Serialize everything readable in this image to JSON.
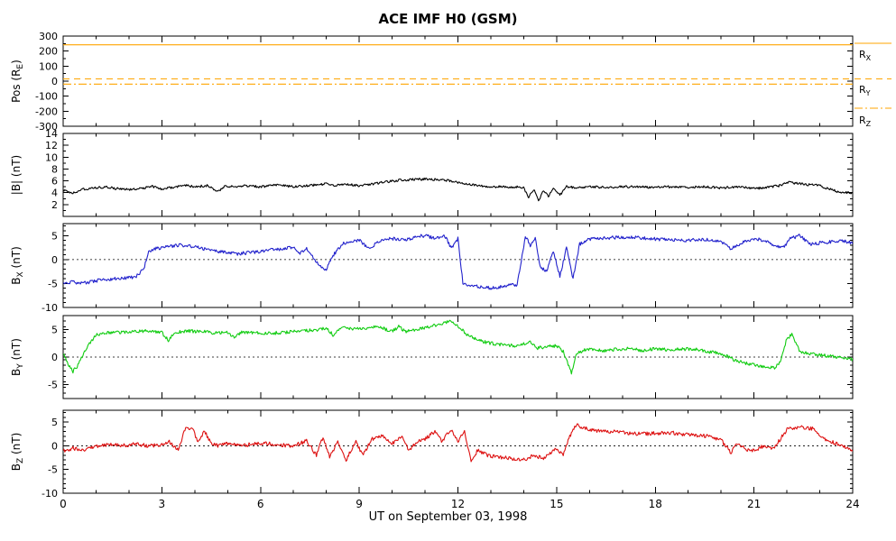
{
  "chart_data": {
    "type": "line",
    "title": "ACE IMF H0 (GSM)",
    "xlabel": "UT on September 03, 1998",
    "x_range": [
      0,
      24
    ],
    "x_major_ticks": [
      0,
      3,
      6,
      9,
      12,
      15,
      18,
      21,
      24
    ],
    "x_minor_step": 1,
    "panels": [
      {
        "id": "position",
        "ylabel_parts": [
          {
            "t": "Pos (R"
          },
          {
            "t": "E",
            "sub": true
          },
          {
            "t": ")"
          }
        ],
        "ylim": [
          -300,
          300
        ],
        "yticks": [
          300,
          200,
          100,
          0,
          -100,
          -200,
          -300
        ],
        "y_minor_step": 50,
        "zero_line": false,
        "series": [
          {
            "name": "R_X",
            "color": "#ffa500",
            "dash": "solid",
            "const": 242
          },
          {
            "name": "R_Y",
            "color": "#ffa500",
            "dash": "dash",
            "const": 15
          },
          {
            "name": "R_Z",
            "color": "#ffa500",
            "dash": "dashdot",
            "const": -20
          }
        ],
        "legend": [
          {
            "label_parts": [
              {
                "t": "R"
              },
              {
                "t": "X",
                "sub": true
              }
            ],
            "dash": "solid",
            "color": "#ffa500"
          },
          {
            "label_parts": [
              {
                "t": "R"
              },
              {
                "t": "Y",
                "sub": true
              }
            ],
            "dash": "dash",
            "color": "#ffa500"
          },
          {
            "label_parts": [
              {
                "t": "R"
              },
              {
                "t": "Z",
                "sub": true
              }
            ],
            "dash": "dashdot",
            "color": "#ffa500"
          }
        ]
      },
      {
        "id": "bmag",
        "ylabel_parts": [
          {
            "t": "|B| (nT)"
          }
        ],
        "ylim": [
          0,
          14
        ],
        "yticks": [
          2,
          4,
          6,
          8,
          10,
          12,
          14
        ],
        "y_minor_step": 1,
        "zero_line": false,
        "series": [
          {
            "name": "|B|",
            "color": "#000000",
            "dash": "solid",
            "noise": 0.2,
            "x": [
              0,
              0.3,
              0.6,
              1,
              1.3,
              1.6,
              2,
              2.4,
              2.7,
              3,
              3.4,
              3.7,
              4,
              4.4,
              4.7,
              4.9,
              5.2,
              5.5,
              6,
              6.5,
              7,
              7.5,
              8,
              8.3,
              8.6,
              9,
              9.4,
              9.8,
              10.2,
              10.6,
              11,
              11.4,
              11.8,
              12.1,
              12.4,
              12.8,
              13.2,
              13.6,
              14,
              14.15,
              14.3,
              14.45,
              14.6,
              14.75,
              14.9,
              15.1,
              15.3,
              15.6,
              16,
              16.5,
              17,
              17.5,
              18,
              18.5,
              19,
              19.5,
              20,
              20.5,
              21,
              21.4,
              21.8,
              22,
              22.3,
              22.6,
              23,
              23.3,
              23.6,
              24
            ],
            "y": [
              4.4,
              4.0,
              4.6,
              4.8,
              5.0,
              4.7,
              4.5,
              4.7,
              5.1,
              4.6,
              5.0,
              5.3,
              5.0,
              5.2,
              4.2,
              5.1,
              5.0,
              5.2,
              5.0,
              5.3,
              5.0,
              5.2,
              5.5,
              5.2,
              5.4,
              5.2,
              5.5,
              5.8,
              6.1,
              6.2,
              6.3,
              6.2,
              6.0,
              5.6,
              5.3,
              5.1,
              5.0,
              5.0,
              4.9,
              3.2,
              4.6,
              2.6,
              4.4,
              3.4,
              4.8,
              3.6,
              5.0,
              4.8,
              5.0,
              4.9,
              5.0,
              5.0,
              4.9,
              5.0,
              4.9,
              5.0,
              4.8,
              5.0,
              4.7,
              4.9,
              5.2,
              5.8,
              5.6,
              5.4,
              5.2,
              4.6,
              4.1,
              4.0
            ]
          }
        ]
      },
      {
        "id": "bx",
        "ylabel_parts": [
          {
            "t": "B"
          },
          {
            "t": "X",
            "sub": true
          },
          {
            "t": " (nT)"
          }
        ],
        "ylim": [
          -10,
          7.5
        ],
        "yticks": [
          5,
          0,
          -5,
          -10
        ],
        "y_minor_step": 1,
        "zero_line": true,
        "series": [
          {
            "name": "B_X",
            "color": "#2222cc",
            "dash": "solid",
            "noise": 0.35,
            "x": [
              0,
              0.3,
              0.5,
              0.8,
              1,
              1.3,
              1.6,
              2,
              2.2,
              2.45,
              2.6,
              2.8,
              3,
              3.3,
              3.6,
              4,
              4.3,
              4.6,
              5,
              5.3,
              5.6,
              6,
              6.3,
              6.6,
              7,
              7.2,
              7.4,
              7.6,
              7.8,
              8,
              8.2,
              8.5,
              8.8,
              9,
              9.3,
              9.6,
              10,
              10.4,
              10.8,
              11,
              11.3,
              11.6,
              11.8,
              12,
              12.15,
              12.3,
              12.6,
              13,
              13.4,
              13.8,
              14.05,
              14.2,
              14.35,
              14.5,
              14.7,
              14.9,
              15.1,
              15.3,
              15.5,
              15.7,
              16,
              16.4,
              16.8,
              17.2,
              17.6,
              18,
              18.4,
              18.8,
              19.2,
              19.6,
              20,
              20.3,
              20.6,
              21,
              21.3,
              21.6,
              21.9,
              22.1,
              22.4,
              22.7,
              23,
              23.4,
              23.7,
              24
            ],
            "y": [
              -5.0,
              -4.6,
              -5.0,
              -4.7,
              -4.4,
              -4.2,
              -4.0,
              -3.8,
              -3.6,
              -2.0,
              1.5,
              2.3,
              2.5,
              2.8,
              3.0,
              2.6,
              2.2,
              1.8,
              1.5,
              1.2,
              1.4,
              1.6,
              2.0,
              2.2,
              2.5,
              1.2,
              2.4,
              0.5,
              -1.5,
              -2.0,
              0.8,
              3.4,
              3.8,
              4.0,
              2.2,
              3.8,
              4.4,
              4.0,
              4.8,
              5.0,
              4.4,
              5.0,
              2.2,
              4.4,
              -4.8,
              -5.4,
              -5.6,
              -6.0,
              -5.6,
              -5.2,
              4.8,
              3.0,
              4.6,
              -1.5,
              -2.5,
              1.8,
              -3.5,
              2.5,
              -4.0,
              3.2,
              4.3,
              4.5,
              4.6,
              4.7,
              4.5,
              4.3,
              4.1,
              4.0,
              4.1,
              4.2,
              3.6,
              2.2,
              3.4,
              4.4,
              4.0,
              3.0,
              2.6,
              4.4,
              5.0,
              3.2,
              3.5,
              3.7,
              3.8,
              3.5
            ]
          }
        ]
      },
      {
        "id": "by",
        "ylabel_parts": [
          {
            "t": "B"
          },
          {
            "t": "Y",
            "sub": true
          },
          {
            "t": " (nT)"
          }
        ],
        "ylim": [
          -7.5,
          7.5
        ],
        "yticks": [
          5,
          0,
          -5
        ],
        "y_minor_step": 1,
        "zero_line": true,
        "series": [
          {
            "name": "B_Y",
            "color": "#11cc11",
            "dash": "solid",
            "noise": 0.3,
            "x": [
              0,
              0.15,
              0.3,
              0.45,
              0.6,
              0.8,
              1,
              1.4,
              1.8,
              2.2,
              2.6,
              3,
              3.2,
              3.4,
              3.8,
              4.2,
              4.6,
              5,
              5.2,
              5.4,
              5.8,
              6.2,
              6.6,
              7,
              7.4,
              7.8,
              8,
              8.2,
              8.5,
              8.8,
              9.2,
              9.6,
              10,
              10.2,
              10.4,
              10.8,
              11.2,
              11.6,
              11.8,
              12,
              12.3,
              12.6,
              13,
              13.4,
              13.8,
              14.2,
              14.4,
              14.7,
              15,
              15.2,
              15.45,
              15.6,
              15.8,
              16,
              16.4,
              16.8,
              17.2,
              17.6,
              18,
              18.4,
              18.8,
              19.2,
              19.6,
              20,
              20.4,
              20.8,
              21.2,
              21.6,
              21.8,
              22,
              22.15,
              22.4,
              22.7,
              23,
              23.4,
              23.7,
              24
            ],
            "y": [
              0.5,
              -1.2,
              -2.6,
              -1.5,
              0.5,
              2.5,
              4.0,
              4.4,
              4.5,
              4.6,
              4.8,
              4.4,
              3.0,
              4.4,
              4.7,
              4.6,
              4.4,
              4.5,
              3.4,
              4.5,
              4.4,
              4.3,
              4.4,
              4.6,
              4.8,
              5.0,
              5.3,
              4.0,
              5.5,
              5.0,
              5.2,
              5.5,
              4.6,
              5.5,
              4.6,
              5.0,
              5.6,
              6.2,
              6.5,
              5.6,
              4.0,
              3.0,
              2.5,
              2.2,
              2.0,
              2.8,
              1.6,
              1.9,
              2.0,
              1.0,
              -3.0,
              0.5,
              1.2,
              1.5,
              1.1,
              1.4,
              1.5,
              1.2,
              1.5,
              1.3,
              1.4,
              1.5,
              1.0,
              0.6,
              -0.5,
              -1.2,
              -1.6,
              -2.0,
              -1.0,
              3.4,
              4.0,
              1.0,
              0.6,
              0.4,
              0.1,
              0.0,
              -0.5
            ]
          }
        ]
      },
      {
        "id": "bz",
        "ylabel_parts": [
          {
            "t": "B"
          },
          {
            "t": "Z",
            "sub": true
          },
          {
            "t": " (nT)"
          }
        ],
        "ylim": [
          -10,
          7.5
        ],
        "yticks": [
          5,
          0,
          -5,
          -10
        ],
        "y_minor_step": 1,
        "zero_line": true,
        "series": [
          {
            "name": "B_Z",
            "color": "#dd1111",
            "dash": "solid",
            "noise": 0.4,
            "x": [
              0,
              0.3,
              0.6,
              1,
              1.4,
              1.8,
              2.2,
              2.6,
              3,
              3.2,
              3.5,
              3.7,
              3.9,
              4.1,
              4.3,
              4.5,
              4.7,
              5,
              5.4,
              5.8,
              6.2,
              6.6,
              7,
              7.4,
              7.7,
              7.9,
              8.1,
              8.35,
              8.6,
              8.9,
              9.1,
              9.4,
              9.7,
              10,
              10.3,
              10.5,
              10.8,
              11,
              11.3,
              11.5,
              11.8,
              12,
              12.2,
              12.4,
              12.6,
              12.9,
              13.2,
              13.6,
              14,
              14.3,
              14.6,
              15,
              15.2,
              15.4,
              15.6,
              15.8,
              16,
              16.4,
              16.8,
              17.2,
              17.6,
              18,
              18.4,
              18.8,
              19.2,
              19.6,
              20,
              20.3,
              20.5,
              20.8,
              21,
              21.3,
              21.6,
              22,
              22.4,
              22.8,
              23,
              23.3,
              23.6,
              24
            ],
            "y": [
              -1.0,
              -0.5,
              -1.0,
              -0.2,
              0.3,
              0.0,
              0.4,
              0.0,
              0.3,
              1.0,
              -1.0,
              3.4,
              4.0,
              1.0,
              3.0,
              0.5,
              0.0,
              0.5,
              0.0,
              0.4,
              0.5,
              0.2,
              0.0,
              1.0,
              -2.0,
              2.0,
              -2.4,
              1.0,
              -3.0,
              1.0,
              -2.0,
              1.5,
              2.0,
              0.5,
              2.0,
              -1.0,
              1.0,
              1.5,
              3.0,
              1.0,
              3.4,
              1.0,
              3.0,
              -3.0,
              -1.0,
              -2.0,
              -2.4,
              -2.6,
              -3.0,
              -2.0,
              -2.6,
              -0.5,
              -2.0,
              2.0,
              4.4,
              3.8,
              3.5,
              3.0,
              3.0,
              2.6,
              2.5,
              2.6,
              2.8,
              2.5,
              2.2,
              2.0,
              1.2,
              -1.4,
              0.5,
              -0.8,
              -1.0,
              0.0,
              -0.5,
              3.4,
              4.0,
              3.6,
              2.0,
              1.0,
              0.2,
              -1.0
            ]
          }
        ]
      }
    ]
  }
}
